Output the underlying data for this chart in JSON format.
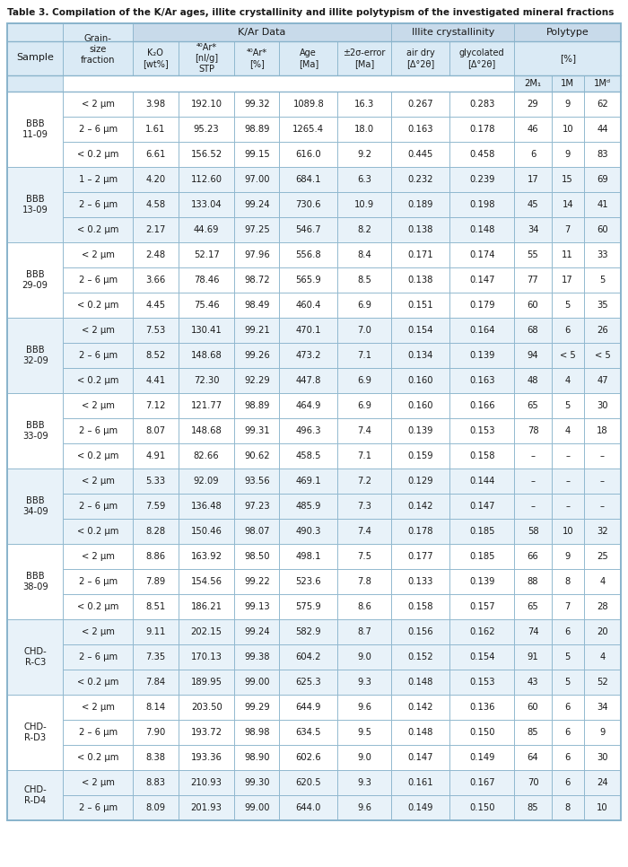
{
  "title": "Table 3. Compilation of the K/Ar ages, illite crystallinity and illite polytypism of the investigated mineral fractions",
  "bg_color": "#ffffff",
  "header_bg": "#c8daea",
  "subheader_bg": "#daeaf5",
  "row_bg_a": "#ffffff",
  "row_bg_b": "#e8f2f9",
  "border_color": "#8ab4cc",
  "text_color": "#1a1a1a",
  "rows": [
    {
      "grain": "< 2 μm",
      "k2o": "3.98",
      "ar40": "192.10",
      "ar40pct": "99.32",
      "age": "1089.8",
      "err": "16.3",
      "airdry": "0.267",
      "glyc": "0.283",
      "m2m1": "29",
      "m1": "9",
      "m1d": "62"
    },
    {
      "grain": "2 – 6 μm",
      "k2o": "1.61",
      "ar40": "95.23",
      "ar40pct": "98.89",
      "age": "1265.4",
      "err": "18.0",
      "airdry": "0.163",
      "glyc": "0.178",
      "m2m1": "46",
      "m1": "10",
      "m1d": "44"
    },
    {
      "grain": "< 0.2 μm",
      "k2o": "6.61",
      "ar40": "156.52",
      "ar40pct": "99.15",
      "age": "616.0",
      "err": "9.2",
      "airdry": "0.445",
      "glyc": "0.458",
      "m2m1": "6",
      "m1": "9",
      "m1d": "83"
    },
    {
      "grain": "1 – 2 μm",
      "k2o": "4.20",
      "ar40": "112.60",
      "ar40pct": "97.00",
      "age": "684.1",
      "err": "6.3",
      "airdry": "0.232",
      "glyc": "0.239",
      "m2m1": "17",
      "m1": "15",
      "m1d": "69"
    },
    {
      "grain": "2 – 6 μm",
      "k2o": "4.58",
      "ar40": "133.04",
      "ar40pct": "99.24",
      "age": "730.6",
      "err": "10.9",
      "airdry": "0.189",
      "glyc": "0.198",
      "m2m1": "45",
      "m1": "14",
      "m1d": "41"
    },
    {
      "grain": "< 0.2 μm",
      "k2o": "2.17",
      "ar40": "44.69",
      "ar40pct": "97.25",
      "age": "546.7",
      "err": "8.2",
      "airdry": "0.138",
      "glyc": "0.148",
      "m2m1": "34",
      "m1": "7",
      "m1d": "60"
    },
    {
      "grain": "< 2 μm",
      "k2o": "2.48",
      "ar40": "52.17",
      "ar40pct": "97.96",
      "age": "556.8",
      "err": "8.4",
      "airdry": "0.171",
      "glyc": "0.174",
      "m2m1": "55",
      "m1": "11",
      "m1d": "33"
    },
    {
      "grain": "2 – 6 μm",
      "k2o": "3.66",
      "ar40": "78.46",
      "ar40pct": "98.72",
      "age": "565.9",
      "err": "8.5",
      "airdry": "0.138",
      "glyc": "0.147",
      "m2m1": "77",
      "m1": "17",
      "m1d": "5"
    },
    {
      "grain": "< 0.2 μm",
      "k2o": "4.45",
      "ar40": "75.46",
      "ar40pct": "98.49",
      "age": "460.4",
      "err": "6.9",
      "airdry": "0.151",
      "glyc": "0.179",
      "m2m1": "60",
      "m1": "5",
      "m1d": "35"
    },
    {
      "grain": "< 2 μm",
      "k2o": "7.53",
      "ar40": "130.41",
      "ar40pct": "99.21",
      "age": "470.1",
      "err": "7.0",
      "airdry": "0.154",
      "glyc": "0.164",
      "m2m1": "68",
      "m1": "6",
      "m1d": "26"
    },
    {
      "grain": "2 – 6 μm",
      "k2o": "8.52",
      "ar40": "148.68",
      "ar40pct": "99.26",
      "age": "473.2",
      "err": "7.1",
      "airdry": "0.134",
      "glyc": "0.139",
      "m2m1": "94",
      "m1": "< 5",
      "m1d": "< 5"
    },
    {
      "grain": "< 0.2 μm",
      "k2o": "4.41",
      "ar40": "72.30",
      "ar40pct": "92.29",
      "age": "447.8",
      "err": "6.9",
      "airdry": "0.160",
      "glyc": "0.163",
      "m2m1": "48",
      "m1": "4",
      "m1d": "47"
    },
    {
      "grain": "< 2 μm",
      "k2o": "7.12",
      "ar40": "121.77",
      "ar40pct": "98.89",
      "age": "464.9",
      "err": "6.9",
      "airdry": "0.160",
      "glyc": "0.166",
      "m2m1": "65",
      "m1": "5",
      "m1d": "30"
    },
    {
      "grain": "2 – 6 μm",
      "k2o": "8.07",
      "ar40": "148.68",
      "ar40pct": "99.31",
      "age": "496.3",
      "err": "7.4",
      "airdry": "0.139",
      "glyc": "0.153",
      "m2m1": "78",
      "m1": "4",
      "m1d": "18"
    },
    {
      "grain": "< 0.2 μm",
      "k2o": "4.91",
      "ar40": "82.66",
      "ar40pct": "90.62",
      "age": "458.5",
      "err": "7.1",
      "airdry": "0.159",
      "glyc": "0.158",
      "m2m1": "–",
      "m1": "–",
      "m1d": "–"
    },
    {
      "grain": "< 2 μm",
      "k2o": "5.33",
      "ar40": "92.09",
      "ar40pct": "93.56",
      "age": "469.1",
      "err": "7.2",
      "airdry": "0.129",
      "glyc": "0.144",
      "m2m1": "–",
      "m1": "–",
      "m1d": "–"
    },
    {
      "grain": "2 – 6 μm",
      "k2o": "7.59",
      "ar40": "136.48",
      "ar40pct": "97.23",
      "age": "485.9",
      "err": "7.3",
      "airdry": "0.142",
      "glyc": "0.147",
      "m2m1": "–",
      "m1": "–",
      "m1d": "–"
    },
    {
      "grain": "< 0.2 μm",
      "k2o": "8.28",
      "ar40": "150.46",
      "ar40pct": "98.07",
      "age": "490.3",
      "err": "7.4",
      "airdry": "0.178",
      "glyc": "0.185",
      "m2m1": "58",
      "m1": "10",
      "m1d": "32"
    },
    {
      "grain": "< 2 μm",
      "k2o": "8.86",
      "ar40": "163.92",
      "ar40pct": "98.50",
      "age": "498.1",
      "err": "7.5",
      "airdry": "0.177",
      "glyc": "0.185",
      "m2m1": "66",
      "m1": "9",
      "m1d": "25"
    },
    {
      "grain": "2 – 6 μm",
      "k2o": "7.89",
      "ar40": "154.56",
      "ar40pct": "99.22",
      "age": "523.6",
      "err": "7.8",
      "airdry": "0.133",
      "glyc": "0.139",
      "m2m1": "88",
      "m1": "8",
      "m1d": "4"
    },
    {
      "grain": "< 0.2 μm",
      "k2o": "8.51",
      "ar40": "186.21",
      "ar40pct": "99.13",
      "age": "575.9",
      "err": "8.6",
      "airdry": "0.158",
      "glyc": "0.157",
      "m2m1": "65",
      "m1": "7",
      "m1d": "28"
    },
    {
      "grain": "< 2 μm",
      "k2o": "9.11",
      "ar40": "202.15",
      "ar40pct": "99.24",
      "age": "582.9",
      "err": "8.7",
      "airdry": "0.156",
      "glyc": "0.162",
      "m2m1": "74",
      "m1": "6",
      "m1d": "20"
    },
    {
      "grain": "2 – 6 μm",
      "k2o": "7.35",
      "ar40": "170.13",
      "ar40pct": "99.38",
      "age": "604.2",
      "err": "9.0",
      "airdry": "0.152",
      "glyc": "0.154",
      "m2m1": "91",
      "m1": "5",
      "m1d": "4"
    },
    {
      "grain": "< 0.2 μm",
      "k2o": "7.84",
      "ar40": "189.95",
      "ar40pct": "99.00",
      "age": "625.3",
      "err": "9.3",
      "airdry": "0.148",
      "glyc": "0.153",
      "m2m1": "43",
      "m1": "5",
      "m1d": "52"
    },
    {
      "grain": "< 2 μm",
      "k2o": "8.14",
      "ar40": "203.50",
      "ar40pct": "99.29",
      "age": "644.9",
      "err": "9.6",
      "airdry": "0.142",
      "glyc": "0.136",
      "m2m1": "60",
      "m1": "6",
      "m1d": "34"
    },
    {
      "grain": "2 – 6 μm",
      "k2o": "7.90",
      "ar40": "193.72",
      "ar40pct": "98.98",
      "age": "634.5",
      "err": "9.5",
      "airdry": "0.148",
      "glyc": "0.150",
      "m2m1": "85",
      "m1": "6",
      "m1d": "9"
    },
    {
      "grain": "< 0.2 μm",
      "k2o": "8.38",
      "ar40": "193.36",
      "ar40pct": "98.90",
      "age": "602.6",
      "err": "9.0",
      "airdry": "0.147",
      "glyc": "0.149",
      "m2m1": "64",
      "m1": "6",
      "m1d": "30"
    },
    {
      "grain": "< 2 μm",
      "k2o": "8.83",
      "ar40": "210.93",
      "ar40pct": "99.30",
      "age": "620.5",
      "err": "9.3",
      "airdry": "0.161",
      "glyc": "0.167",
      "m2m1": "70",
      "m1": "6",
      "m1d": "24"
    },
    {
      "grain": "2 – 6 μm",
      "k2o": "8.09",
      "ar40": "201.93",
      "ar40pct": "99.00",
      "age": "644.0",
      "err": "9.6",
      "airdry": "0.149",
      "glyc": "0.150",
      "m2m1": "85",
      "m1": "8",
      "m1d": "10"
    }
  ],
  "sample_groups": [
    {
      "name": "BBB\n11-09",
      "start": 0,
      "end": 2
    },
    {
      "name": "BBB\n13-09",
      "start": 3,
      "end": 5
    },
    {
      "name": "BBB\n29-09",
      "start": 6,
      "end": 8
    },
    {
      "name": "BBB\n32-09",
      "start": 9,
      "end": 11
    },
    {
      "name": "BBB\n33-09",
      "start": 12,
      "end": 14
    },
    {
      "name": "BBB\n34-09",
      "start": 15,
      "end": 17
    },
    {
      "name": "BBB\n38-09",
      "start": 18,
      "end": 20
    },
    {
      "name": "CHD-\nR-C3",
      "start": 21,
      "end": 23
    },
    {
      "name": "CHD-\nR-D3",
      "start": 24,
      "end": 26
    },
    {
      "name": "CHD-\nR-D4",
      "start": 27,
      "end": 28
    }
  ]
}
